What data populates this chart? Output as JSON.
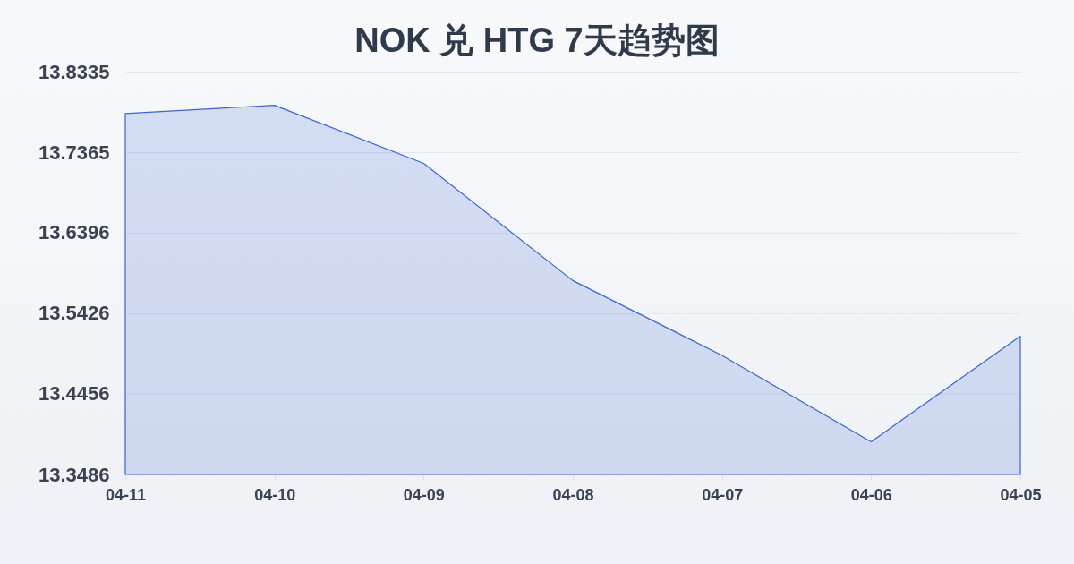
{
  "chart_data": {
    "type": "area",
    "title": "NOK 兑 HTG 7天趋势图",
    "categories": [
      "04-11",
      "04-10",
      "04-09",
      "04-08",
      "04-07",
      "04-06",
      "04-05"
    ],
    "values": [
      13.783,
      13.793,
      13.723,
      13.582,
      13.492,
      13.388,
      13.515
    ],
    "color": "#3a64d0",
    "ylim": [
      13.3486,
      13.8335
    ],
    "yticks": [
      13.3486,
      13.4456,
      13.5426,
      13.6396,
      13.7365,
      13.8335
    ],
    "grid": "y"
  }
}
